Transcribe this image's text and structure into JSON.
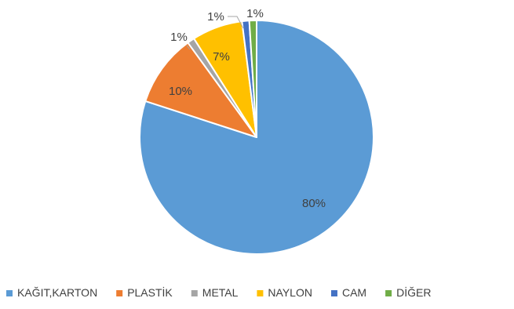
{
  "chart_data": {
    "type": "pie",
    "title": "",
    "slices": [
      {
        "label": "KAĞIT,KARTON",
        "value": 80,
        "value_label": "80%",
        "color": "#5B9BD5"
      },
      {
        "label": "PLASTİK",
        "value": 10,
        "value_label": "10%",
        "color": "#ED7D31"
      },
      {
        "label": "METAL",
        "value": 1,
        "value_label": "1%",
        "color": "#A5A5A5"
      },
      {
        "label": "NAYLON",
        "value": 7,
        "value_label": "7%",
        "color": "#FFC000"
      },
      {
        "label": "CAM",
        "value": 1,
        "value_label": "1%",
        "color": "#4472C4"
      },
      {
        "label": "DİĞER",
        "value": 1,
        "value_label": "1%",
        "color": "#70AD47"
      }
    ],
    "start": "12 o'clock",
    "direction": "clockwise",
    "legend_position": "bottom",
    "data_labels": true
  }
}
